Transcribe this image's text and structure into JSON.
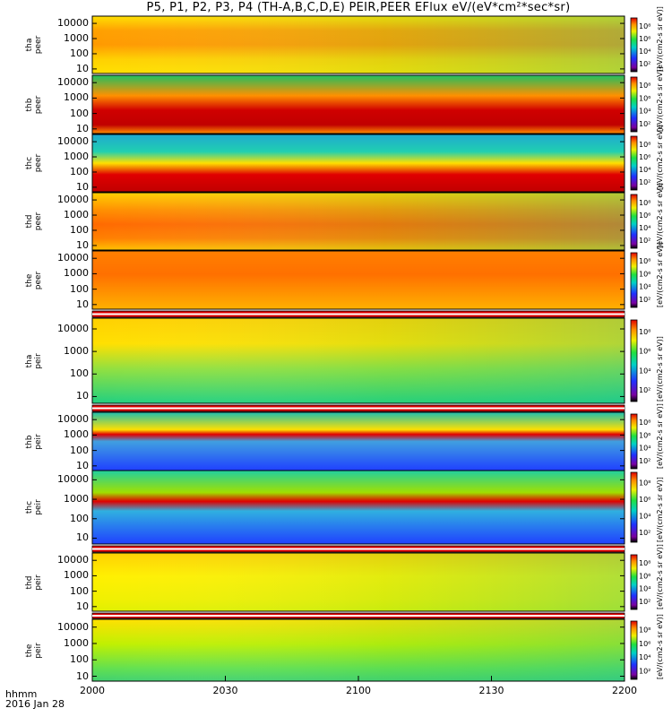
{
  "chart_data": {
    "type": "heatmap",
    "title": "P5, P1, P2, P3, P4 (TH-A,B,C,D,E) PEIR,PEER EFlux eV/(eV*cm²*sec*sr)",
    "xlabel_left": "hhmm",
    "date": "2016 Jan 28",
    "x_ticks": [
      "2000",
      "2030",
      "2100",
      "2130",
      "2200"
    ],
    "y_ticks": [
      "10",
      "100",
      "1000",
      "10000"
    ],
    "yscale": "log",
    "ylim": [
      5,
      30000
    ],
    "colorbar_ticks": [
      "10²",
      "10⁴",
      "10⁶",
      "10⁸"
    ],
    "colorbar_unit_label": "[eV/(cm2-s sr eV)]",
    "panels": [
      {
        "name": "tha peer",
        "line1": "tha",
        "line2": "peer",
        "dominant": "yellow-orange",
        "flag_bar": false
      },
      {
        "name": "thb peer",
        "line1": "thb",
        "line2": "peer",
        "dominant": "red band near 100 eV, green above",
        "flag_bar": false
      },
      {
        "name": "thc peer",
        "line1": "thc",
        "line2": "peer",
        "dominant": "red band 10-100 eV, blue-green above",
        "flag_bar": false
      },
      {
        "name": "thd peer",
        "line1": "thd",
        "line2": "peer",
        "dominant": "orange-red",
        "flag_bar": false
      },
      {
        "name": "the peer",
        "line1": "the",
        "line2": "peer",
        "dominant": "orange-red",
        "flag_bar": true
      },
      {
        "name": "tha peir",
        "line1": "tha",
        "line2": "peir",
        "dominant": "green-yellow",
        "flag_bar": true
      },
      {
        "name": "thb peir",
        "line1": "thb",
        "line2": "peir",
        "dominant": "blue with red band near 500 eV",
        "flag_bar": false
      },
      {
        "name": "thc peir",
        "line1": "thc",
        "line2": "peir",
        "dominant": "blue with red band near 500 eV",
        "flag_bar": true
      },
      {
        "name": "thd peir",
        "line1": "thd",
        "line2": "peir",
        "dominant": "yellow",
        "flag_bar": true
      },
      {
        "name": "the peir",
        "line1": "the",
        "line2": "peir",
        "dominant": "green-yellow",
        "flag_bar": false
      }
    ]
  },
  "colors": {
    "black": "#000000",
    "purple": "#7a00a0",
    "blue": "#2030ff",
    "cyan": "#00d0c8",
    "green": "#20e040",
    "yellow": "#f0f000",
    "orange": "#ff9000",
    "red": "#e00000"
  }
}
